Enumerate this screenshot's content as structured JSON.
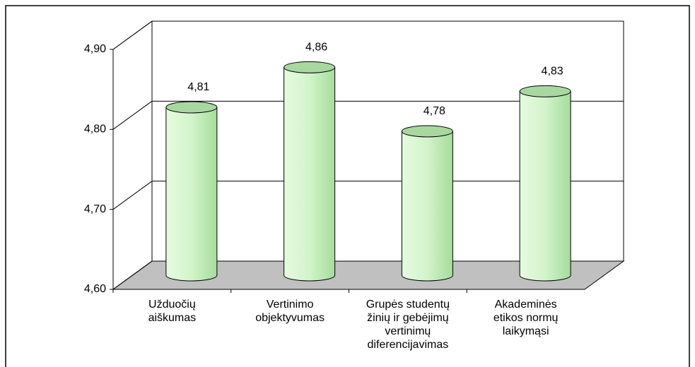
{
  "chart_data": {
    "type": "bar3d",
    "categories": [
      "Užduočių\naiškumas",
      "Vertinimo\nobjektyvumas",
      "Grupės studentų\nžinių ir gebėjimų\nvertinimų\ndiferencijavimas",
      "Akademinės\netikos normų\nlaikymąsi"
    ],
    "values": [
      4.81,
      4.86,
      4.78,
      4.83
    ],
    "value_labels": [
      "4,81",
      "4,86",
      "4,78",
      "4,83"
    ],
    "color": "#c8f0c0",
    "ylim": [
      4.6,
      4.9
    ],
    "yticks": [
      {
        "value": 4.6,
        "label": "4,60"
      },
      {
        "value": 4.7,
        "label": "4,70"
      },
      {
        "value": 4.8,
        "label": "4,80"
      },
      {
        "value": 4.9,
        "label": "4,90"
      }
    ],
    "grid": true
  }
}
